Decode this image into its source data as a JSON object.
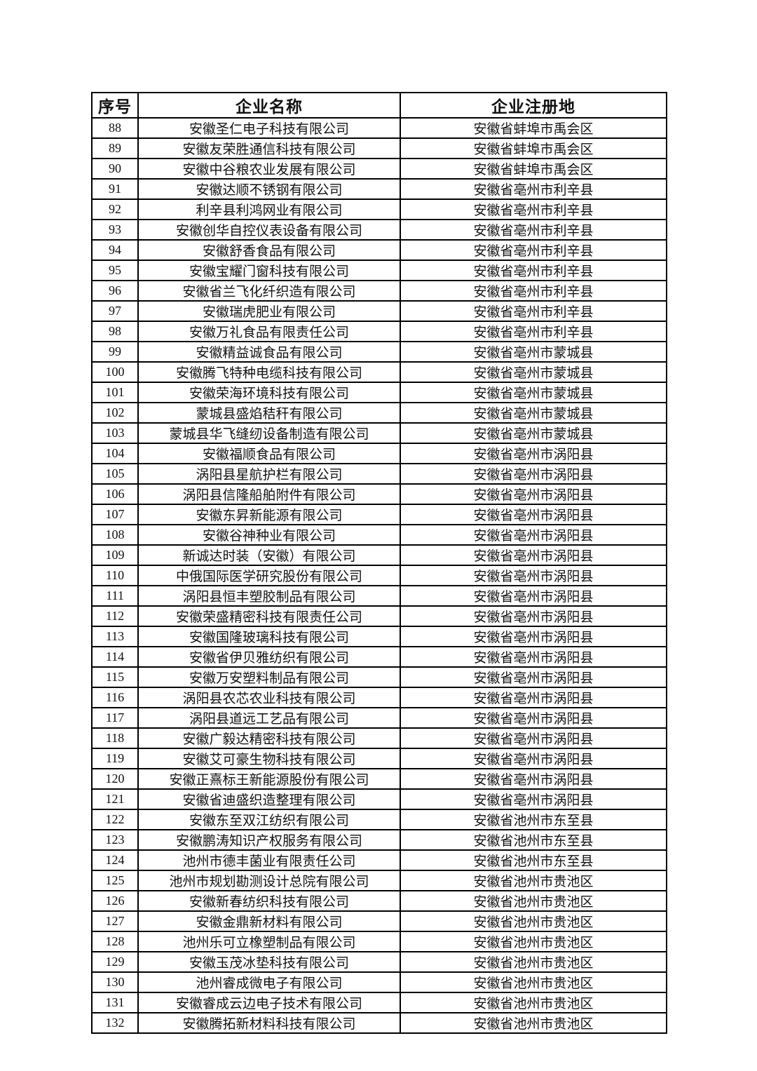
{
  "table": {
    "headers": [
      "序号",
      "企业名称",
      "企业注册地"
    ],
    "rows": [
      [
        "88",
        "安徽圣仁电子科技有限公司",
        "安徽省蚌埠市禹会区"
      ],
      [
        "89",
        "安徽友荣胜通信科技有限公司",
        "安徽省蚌埠市禹会区"
      ],
      [
        "90",
        "安徽中谷粮农业发展有限公司",
        "安徽省蚌埠市禹会区"
      ],
      [
        "91",
        "安徽达顺不锈钢有限公司",
        "安徽省亳州市利辛县"
      ],
      [
        "92",
        "利辛县利鸿网业有限公司",
        "安徽省亳州市利辛县"
      ],
      [
        "93",
        "安徽创华自控仪表设备有限公司",
        "安徽省亳州市利辛县"
      ],
      [
        "94",
        "安徽舒香食品有限公司",
        "安徽省亳州市利辛县"
      ],
      [
        "95",
        "安徽宝耀门窗科技有限公司",
        "安徽省亳州市利辛县"
      ],
      [
        "96",
        "安徽省兰飞化纤织造有限公司",
        "安徽省亳州市利辛县"
      ],
      [
        "97",
        "安徽瑞虎肥业有限公司",
        "安徽省亳州市利辛县"
      ],
      [
        "98",
        "安徽万礼食品有限责任公司",
        "安徽省亳州市利辛县"
      ],
      [
        "99",
        "安徽精益诚食品有限公司",
        "安徽省亳州市蒙城县"
      ],
      [
        "100",
        "安徽腾飞特种电缆科技有限公司",
        "安徽省亳州市蒙城县"
      ],
      [
        "101",
        "安徽荣海环境科技有限公司",
        "安徽省亳州市蒙城县"
      ],
      [
        "102",
        "蒙城县盛焰秸秆有限公司",
        "安徽省亳州市蒙城县"
      ],
      [
        "103",
        "蒙城县华飞缝纫设备制造有限公司",
        "安徽省亳州市蒙城县"
      ],
      [
        "104",
        "安徽福顺食品有限公司",
        "安徽省亳州市涡阳县"
      ],
      [
        "105",
        "涡阳县星航护栏有限公司",
        "安徽省亳州市涡阳县"
      ],
      [
        "106",
        "涡阳县信隆船舶附件有限公司",
        "安徽省亳州市涡阳县"
      ],
      [
        "107",
        "安徽东昇新能源有限公司",
        "安徽省亳州市涡阳县"
      ],
      [
        "108",
        "安徽谷神种业有限公司",
        "安徽省亳州市涡阳县"
      ],
      [
        "109",
        "新诚达时装（安徽）有限公司",
        "安徽省亳州市涡阳县"
      ],
      [
        "110",
        "中俄国际医学研究股份有限公司",
        "安徽省亳州市涡阳县"
      ],
      [
        "111",
        "涡阳县恒丰塑胶制品有限公司",
        "安徽省亳州市涡阳县"
      ],
      [
        "112",
        "安徽荣盛精密科技有限责任公司",
        "安徽省亳州市涡阳县"
      ],
      [
        "113",
        "安徽国隆玻璃科技有限公司",
        "安徽省亳州市涡阳县"
      ],
      [
        "114",
        "安徽省伊贝雅纺织有限公司",
        "安徽省亳州市涡阳县"
      ],
      [
        "115",
        "安徽万安塑料制品有限公司",
        "安徽省亳州市涡阳县"
      ],
      [
        "116",
        "涡阳县农芯农业科技有限公司",
        "安徽省亳州市涡阳县"
      ],
      [
        "117",
        "涡阳县道远工艺品有限公司",
        "安徽省亳州市涡阳县"
      ],
      [
        "118",
        "安徽广毅达精密科技有限公司",
        "安徽省亳州市涡阳县"
      ],
      [
        "119",
        "安徽艾可豪生物科技有限公司",
        "安徽省亳州市涡阳县"
      ],
      [
        "120",
        "安徽正熹标王新能源股份有限公司",
        "安徽省亳州市涡阳县"
      ],
      [
        "121",
        "安徽省迪盛织造整理有限公司",
        "安徽省亳州市涡阳县"
      ],
      [
        "122",
        "安徽东至双江纺织有限公司",
        "安徽省池州市东至县"
      ],
      [
        "123",
        "安徽鹏涛知识产权服务有限公司",
        "安徽省池州市东至县"
      ],
      [
        "124",
        "池州市德丰菌业有限责任公司",
        "安徽省池州市东至县"
      ],
      [
        "125",
        "池州市规划勘测设计总院有限公司",
        "安徽省池州市贵池区"
      ],
      [
        "126",
        "安徽新春纺织科技有限公司",
        "安徽省池州市贵池区"
      ],
      [
        "127",
        "安徽金鼎新材料有限公司",
        "安徽省池州市贵池区"
      ],
      [
        "128",
        "池州乐可立橡塑制品有限公司",
        "安徽省池州市贵池区"
      ],
      [
        "129",
        "安徽玉茂冰垫科技有限公司",
        "安徽省池州市贵池区"
      ],
      [
        "130",
        "池州睿成微电子有限公司",
        "安徽省池州市贵池区"
      ],
      [
        "131",
        "安徽睿成云边电子技术有限公司",
        "安徽省池州市贵池区"
      ],
      [
        "132",
        "安徽腾拓新材料科技有限公司",
        "安徽省池州市贵池区"
      ]
    ]
  }
}
